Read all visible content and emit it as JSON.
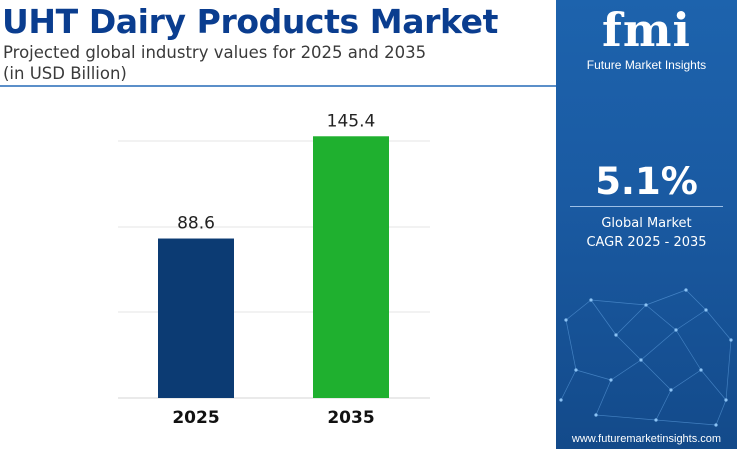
{
  "header": {
    "title": "UHT Dairy Products Market",
    "subtitle_line1": "Projected global industry values for 2025 and 2035",
    "subtitle_line2": "(in USD Billion)"
  },
  "chart_data": {
    "type": "bar",
    "categories": [
      "2025",
      "2035"
    ],
    "values": [
      88.6,
      145.4
    ],
    "value_labels": [
      "88.6",
      "145.4"
    ],
    "bar_colors": [
      "#0c3b73",
      "#1fb02f"
    ],
    "ylim": [
      0,
      170
    ],
    "grid": true,
    "title": "",
    "xlabel": "",
    "ylabel": ""
  },
  "sidebar": {
    "logo_text": "fmi",
    "logo_subtext": "Future Market Insights",
    "cagr_value": "5.1%",
    "cagr_label_line1": "Global Market",
    "cagr_label_line2": "CAGR 2025 - 2035",
    "website": "www.futuremarketinsights.com",
    "background_color": "#1a5aa2"
  }
}
